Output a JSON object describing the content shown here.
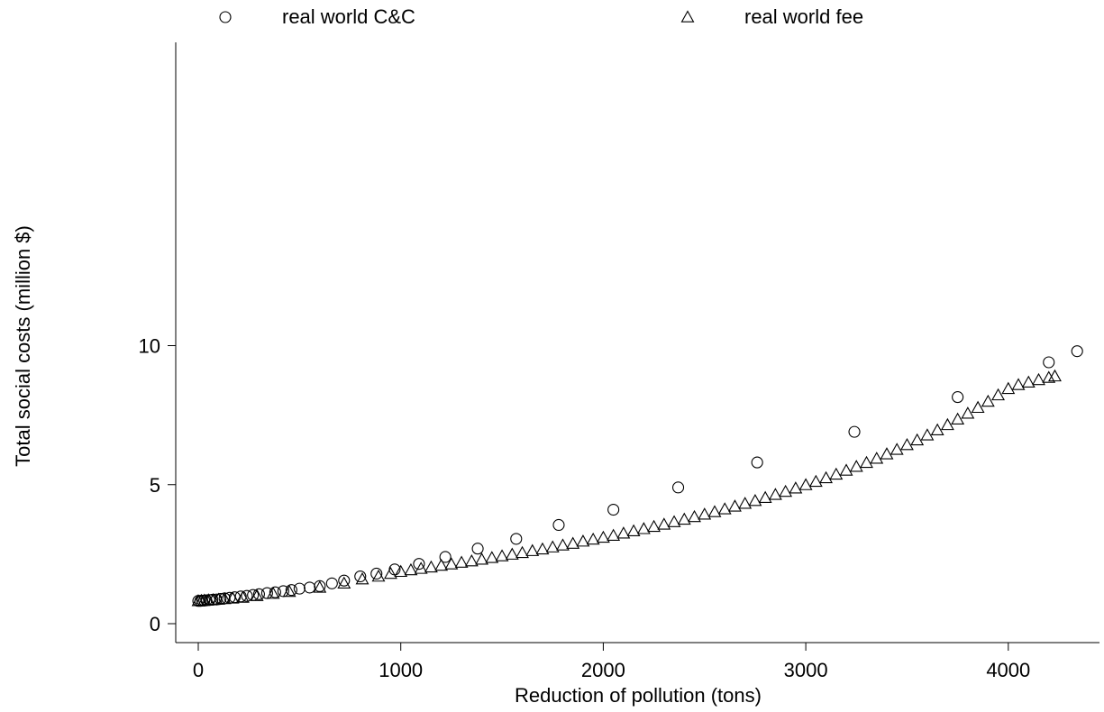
{
  "chart_data": {
    "type": "scatter",
    "title": "",
    "xlabel": "Reduction of pollution (tons)",
    "ylabel": "Total social costs (million $)",
    "xlim": [
      -120,
      4450
    ],
    "ylim": [
      -0.4,
      10.5
    ],
    "xticks": [
      0,
      1000,
      2000,
      3000,
      4000
    ],
    "yticks": [
      0,
      5,
      10
    ],
    "grid": false,
    "legend_position": "top",
    "series": [
      {
        "name": "real world C&C",
        "marker": "circle",
        "color": "#000000",
        "points": [
          [
            0,
            0.82
          ],
          [
            10,
            0.82
          ],
          [
            20,
            0.83
          ],
          [
            30,
            0.83
          ],
          [
            40,
            0.84
          ],
          [
            55,
            0.85
          ],
          [
            70,
            0.86
          ],
          [
            90,
            0.87
          ],
          [
            110,
            0.89
          ],
          [
            130,
            0.91
          ],
          [
            155,
            0.93
          ],
          [
            180,
            0.95
          ],
          [
            210,
            0.98
          ],
          [
            240,
            1.0
          ],
          [
            270,
            1.03
          ],
          [
            300,
            1.06
          ],
          [
            340,
            1.1
          ],
          [
            380,
            1.13
          ],
          [
            420,
            1.17
          ],
          [
            460,
            1.21
          ],
          [
            500,
            1.26
          ],
          [
            550,
            1.3
          ],
          [
            600,
            1.35
          ],
          [
            660,
            1.45
          ],
          [
            720,
            1.55
          ],
          [
            800,
            1.7
          ],
          [
            880,
            1.8
          ],
          [
            970,
            1.95
          ],
          [
            1090,
            2.15
          ],
          [
            1220,
            2.4
          ],
          [
            1380,
            2.7
          ],
          [
            1570,
            3.05
          ],
          [
            1780,
            3.55
          ],
          [
            2050,
            4.1
          ],
          [
            2370,
            4.9
          ],
          [
            2760,
            5.8
          ],
          [
            3240,
            6.9
          ],
          [
            3750,
            8.15
          ],
          [
            4200,
            9.4
          ],
          [
            4340,
            9.8
          ]
        ]
      },
      {
        "name": "real world fee",
        "marker": "triangle",
        "color": "#000000",
        "points": [
          [
            0,
            0.82
          ],
          [
            15,
            0.83
          ],
          [
            30,
            0.84
          ],
          [
            50,
            0.85
          ],
          [
            75,
            0.86
          ],
          [
            100,
            0.87
          ],
          [
            130,
            0.89
          ],
          [
            170,
            0.91
          ],
          [
            220,
            0.94
          ],
          [
            290,
            1.0
          ],
          [
            370,
            1.08
          ],
          [
            450,
            1.15
          ],
          [
            600,
            1.3
          ],
          [
            720,
            1.45
          ],
          [
            810,
            1.6
          ],
          [
            890,
            1.7
          ],
          [
            950,
            1.8
          ],
          [
            1000,
            1.87
          ],
          [
            1050,
            1.93
          ],
          [
            1100,
            1.98
          ],
          [
            1150,
            2.03
          ],
          [
            1200,
            2.09
          ],
          [
            1250,
            2.14
          ],
          [
            1300,
            2.2
          ],
          [
            1350,
            2.25
          ],
          [
            1400,
            2.31
          ],
          [
            1450,
            2.37
          ],
          [
            1500,
            2.43
          ],
          [
            1550,
            2.49
          ],
          [
            1600,
            2.55
          ],
          [
            1650,
            2.62
          ],
          [
            1700,
            2.68
          ],
          [
            1750,
            2.75
          ],
          [
            1800,
            2.82
          ],
          [
            1850,
            2.88
          ],
          [
            1900,
            2.96
          ],
          [
            1950,
            3.03
          ],
          [
            2000,
            3.1
          ],
          [
            2050,
            3.17
          ],
          [
            2100,
            3.25
          ],
          [
            2150,
            3.33
          ],
          [
            2200,
            3.41
          ],
          [
            2250,
            3.49
          ],
          [
            2300,
            3.57
          ],
          [
            2350,
            3.66
          ],
          [
            2400,
            3.75
          ],
          [
            2450,
            3.84
          ],
          [
            2500,
            3.93
          ],
          [
            2550,
            4.02
          ],
          [
            2600,
            4.12
          ],
          [
            2650,
            4.22
          ],
          [
            2700,
            4.32
          ],
          [
            2750,
            4.42
          ],
          [
            2800,
            4.53
          ],
          [
            2850,
            4.64
          ],
          [
            2900,
            4.75
          ],
          [
            2950,
            4.87
          ],
          [
            3000,
            4.99
          ],
          [
            3050,
            5.11
          ],
          [
            3100,
            5.24
          ],
          [
            3150,
            5.37
          ],
          [
            3200,
            5.51
          ],
          [
            3250,
            5.65
          ],
          [
            3300,
            5.79
          ],
          [
            3350,
            5.94
          ],
          [
            3400,
            6.1
          ],
          [
            3450,
            6.26
          ],
          [
            3500,
            6.43
          ],
          [
            3550,
            6.6
          ],
          [
            3600,
            6.78
          ],
          [
            3650,
            6.96
          ],
          [
            3700,
            7.15
          ],
          [
            3750,
            7.35
          ],
          [
            3800,
            7.56
          ],
          [
            3850,
            7.77
          ],
          [
            3900,
            7.99
          ],
          [
            3950,
            8.22
          ],
          [
            4000,
            8.45
          ],
          [
            4050,
            8.59
          ],
          [
            4100,
            8.68
          ],
          [
            4150,
            8.77
          ],
          [
            4200,
            8.85
          ],
          [
            4230,
            8.9
          ]
        ]
      }
    ]
  }
}
